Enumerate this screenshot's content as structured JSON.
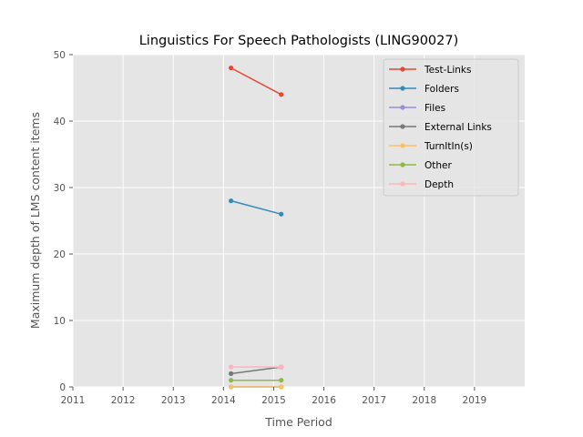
{
  "chart_data": {
    "type": "line",
    "title": "Linguistics For Speech Pathologists (LING90027)",
    "xlabel": "Time Period",
    "ylabel": "Maximum depth of LMS content items",
    "xlim": [
      2011,
      2020
    ],
    "ylim": [
      0,
      50
    ],
    "x_ticks": [
      "2011",
      "2012",
      "2013",
      "2014",
      "2015",
      "2016",
      "2017",
      "2018",
      "2019"
    ],
    "y_ticks": [
      "0",
      "10",
      "20",
      "30",
      "40",
      "50"
    ],
    "grid": true,
    "legend_position": "top-right",
    "x": [
      2014.15,
      2015.15
    ],
    "series": [
      {
        "name": "Test-Links",
        "color": "#E24A33",
        "values": [
          48,
          44
        ]
      },
      {
        "name": "Folders",
        "color": "#348ABD",
        "values": [
          28,
          26
        ]
      },
      {
        "name": "Files",
        "color": "#988ED5",
        "values": [
          0,
          0
        ]
      },
      {
        "name": "External Links",
        "color": "#777777",
        "values": [
          2,
          3
        ]
      },
      {
        "name": "TurnItIn(s)",
        "color": "#FBC15E",
        "values": [
          0,
          0
        ]
      },
      {
        "name": "Other",
        "color": "#8EBA42",
        "values": [
          1,
          1
        ]
      },
      {
        "name": "Depth",
        "color": "#FFB5B8",
        "values": [
          3,
          3
        ]
      }
    ]
  }
}
